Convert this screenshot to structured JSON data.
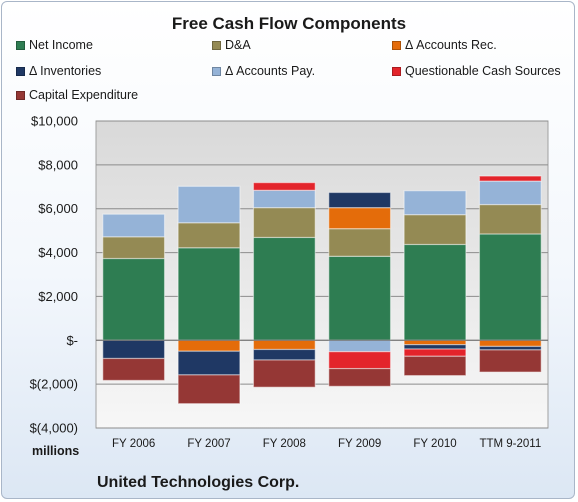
{
  "chart_data": {
    "type": "bar",
    "stacked": true,
    "title": "Free Cash Flow Components",
    "categories": [
      "FY 2006",
      "FY 2007",
      "FY 2008",
      "FY 2009",
      "FY 2010",
      "TTM 9-2011"
    ],
    "ylim": [
      -4000,
      10000
    ],
    "ytick_values": [
      -4000,
      -2000,
      0,
      2000,
      4000,
      6000,
      8000,
      10000
    ],
    "ytick_labels": [
      "$(4,000)",
      "$(2,000)",
      "$-",
      "$2,000",
      "$4,000",
      "$6,000",
      "$8,000",
      "$10,000"
    ],
    "units_label": "millions",
    "grid": true,
    "legend_position": "top",
    "series": [
      {
        "name": "Net Income",
        "color": "#2e7d52",
        "values": [
          3730,
          4220,
          4690,
          3830,
          4370,
          4850
        ]
      },
      {
        "name": "D&A",
        "color": "#948a54",
        "values": [
          990,
          1140,
          1360,
          1260,
          1360,
          1340
        ]
      },
      {
        "name": "Δ Accounts Rec.",
        "color": "#e46c0a",
        "values": [
          0,
          -500,
          -420,
          960,
          -200,
          -280
        ]
      },
      {
        "name": "Δ Inventories",
        "color": "#1f3864",
        "values": [
          -830,
          -1080,
          -480,
          690,
          -200,
          -160
        ]
      },
      {
        "name": "Δ Accounts Pay.",
        "color": "#95b3d7",
        "values": [
          1030,
          1660,
          790,
          -520,
          1090,
          1070
        ]
      },
      {
        "name": "Questionable Cash Sources",
        "color": "#e3242b",
        "values": [
          0,
          0,
          350,
          -770,
          -330,
          230
        ]
      },
      {
        "name": "Capital Expenditure",
        "color": "#953735",
        "values": [
          -1000,
          -1310,
          -1240,
          -810,
          -880,
          -1010
        ]
      }
    ]
  },
  "footer": {
    "company": "United Technologies Corp."
  }
}
